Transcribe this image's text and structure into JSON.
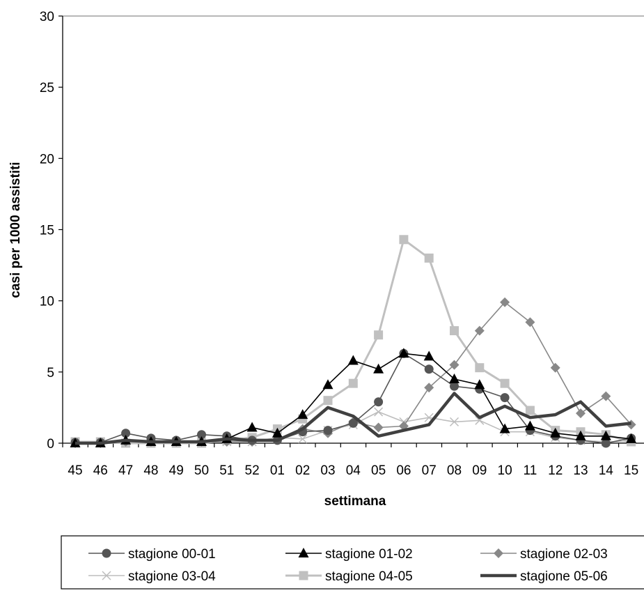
{
  "chart_data": {
    "type": "line",
    "xlabel": "settimana",
    "ylabel": "casi per 1000 assistiti",
    "ylim": [
      0,
      30
    ],
    "yticks": [
      "0",
      "5",
      "10",
      "15",
      "20",
      "25",
      "30"
    ],
    "categories": [
      "45",
      "46",
      "47",
      "48",
      "49",
      "50",
      "51",
      "52",
      "01",
      "02",
      "03",
      "04",
      "05",
      "06",
      "07",
      "08",
      "09",
      "10",
      "11",
      "12",
      "13",
      "14",
      "15"
    ],
    "grid": "off",
    "legend_position": "bottom",
    "series": [
      {
        "name": "stagione 00-01",
        "color": "#555555",
        "marker": "circle",
        "values": [
          0.05,
          0.05,
          0.7,
          0.35,
          0.2,
          0.6,
          0.5,
          0.2,
          0.2,
          0.8,
          0.9,
          1.4,
          2.9,
          6.3,
          5.2,
          4.0,
          3.8,
          3.2,
          0.9,
          0.5,
          0.2,
          0.0,
          0.35
        ]
      },
      {
        "name": "stagione 01-02",
        "color": "#000000",
        "marker": "triangle",
        "values": [
          0.0,
          0.0,
          0.2,
          0.1,
          0.1,
          0.1,
          0.3,
          1.1,
          0.7,
          2.0,
          4.1,
          5.8,
          5.2,
          6.3,
          6.1,
          4.5,
          4.1,
          1.0,
          1.2,
          0.7,
          0.5,
          0.5,
          0.3
        ]
      },
      {
        "name": "stagione 02-03",
        "color": "#888888",
        "marker": "diamond",
        "values": [
          0.0,
          0.0,
          0.1,
          0.1,
          0.1,
          0.1,
          0.1,
          0.1,
          0.3,
          1.0,
          0.7,
          1.5,
          1.1,
          1.2,
          3.9,
          5.5,
          7.9,
          9.9,
          8.5,
          5.3,
          2.1,
          3.3,
          1.3
        ]
      },
      {
        "name": "stagione 03-04",
        "color": "#bdbdbd",
        "marker": "x",
        "values": [
          0.0,
          0.0,
          0.0,
          0.1,
          0.1,
          0.1,
          0.1,
          0.1,
          0.4,
          0.3,
          0.9,
          1.3,
          2.2,
          1.5,
          1.8,
          1.5,
          1.6,
          0.8,
          0.8,
          0.4,
          0.2,
          0.1,
          0.1
        ]
      },
      {
        "name": "stagione 04-05",
        "color": "#c0c0c0",
        "marker": "square",
        "values": [
          0.1,
          0.1,
          0.0,
          0.0,
          0.0,
          0.0,
          0.2,
          0.4,
          1.0,
          1.7,
          3.0,
          4.2,
          7.6,
          14.3,
          13.0,
          7.9,
          5.3,
          4.2,
          2.3,
          0.9,
          0.8,
          0.6,
          0.1
        ]
      },
      {
        "name": "stagione 05-06",
        "color": "#404040",
        "marker": "none",
        "values": [
          0.0,
          0.0,
          0.2,
          0.1,
          0.1,
          0.1,
          0.3,
          0.2,
          0.2,
          1.0,
          2.5,
          1.9,
          0.5,
          0.9,
          1.3,
          3.5,
          1.8,
          2.6,
          1.8,
          2.0,
          2.9,
          1.2,
          1.4
        ]
      }
    ]
  }
}
